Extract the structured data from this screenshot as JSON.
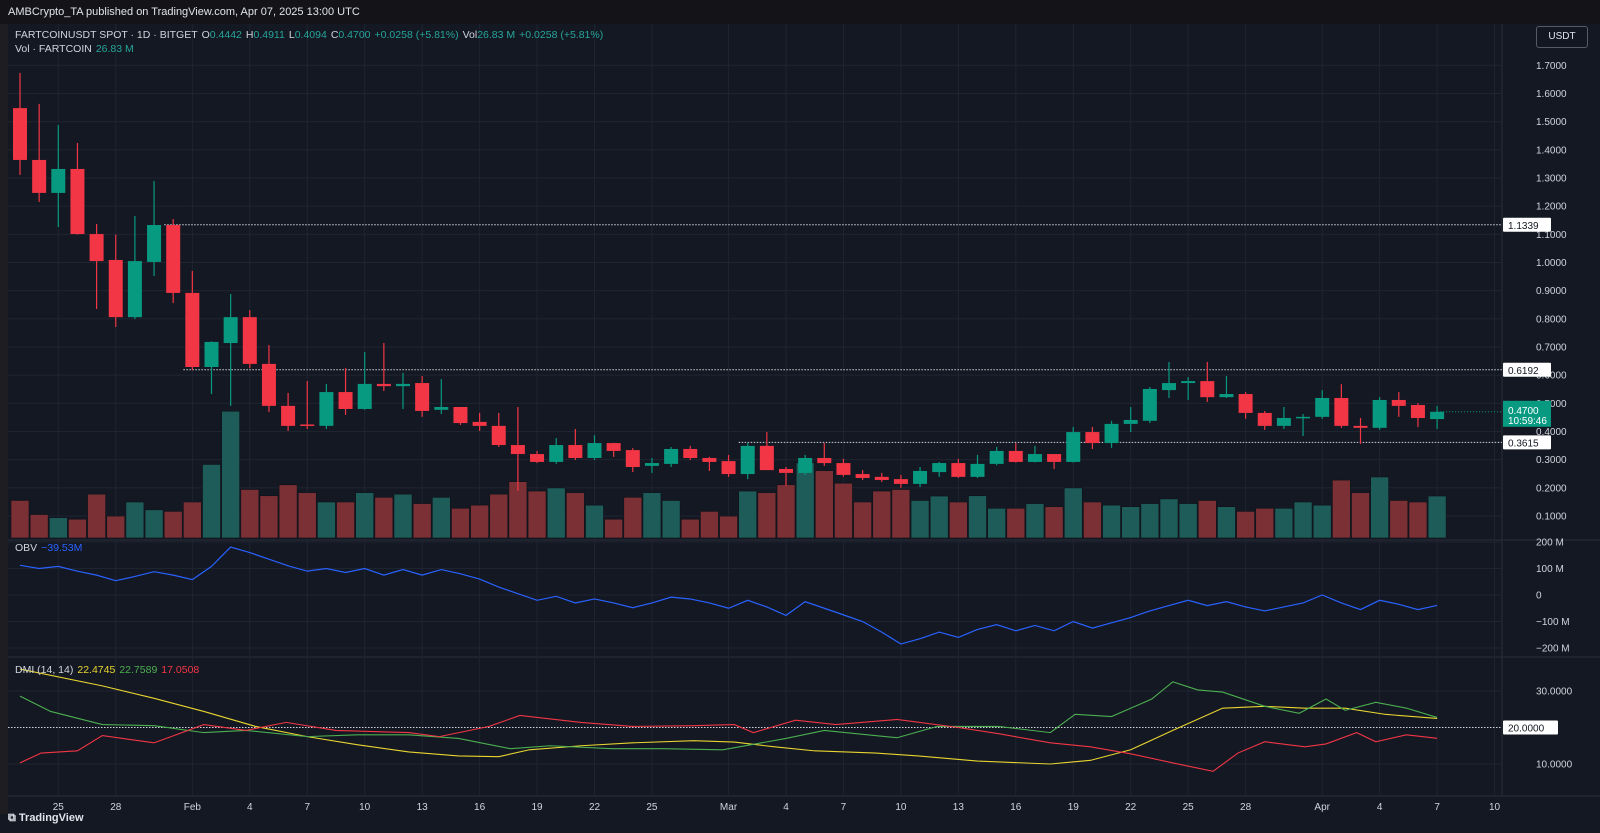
{
  "header": {
    "published": "AMBCrypto_TA published on TradingView.com, Apr 07, 2025 13:00 UTC"
  },
  "legend": {
    "symbol": "FARTCOINUSDT SPOT · 1D · BITGET",
    "o_label": "O",
    "o": "0.4442",
    "h_label": "H",
    "h": "0.4911",
    "l_label": "L",
    "l": "0.4094",
    "c_label": "C",
    "c": "0.4700",
    "change": "+0.0258 (+5.81%)",
    "vol_label": "Vol",
    "vol": "26.83 M",
    "vol_change": "+0.0258 (+5.81%)",
    "vol_line_label": "Vol · FARTCOIN",
    "vol_line_value": "26.83 M"
  },
  "currency_button": "USDT",
  "footer": {
    "brand": "TradingView"
  },
  "colors": {
    "up": "#089981",
    "down": "#f23645",
    "vol_up": "#1d5c59",
    "vol_down": "#7b3035",
    "obv": "#2962ff",
    "adx": "#e8d530",
    "plus_di": "#4caf50",
    "minus_di": "#f23645",
    "bg": "#141823",
    "grid": "#1f2431"
  },
  "chart_data": [
    {
      "type": "candlestick",
      "title": "FARTCOINUSDT SPOT · 1D · BITGET",
      "ylim": [
        0.05,
        1.75
      ],
      "yticks": [
        "1.7000",
        "1.6000",
        "1.5000",
        "1.4000",
        "1.3000",
        "1.2000",
        "1.1000",
        "1.0000",
        "0.9000",
        "0.8000",
        "0.7000",
        "0.6000",
        "0.5000",
        "0.4000",
        "0.3000",
        "0.2000",
        "0.1000"
      ],
      "xticks": [
        {
          "i": 2,
          "label": "25"
        },
        {
          "i": 5,
          "label": "28"
        },
        {
          "i": 9,
          "label": "Feb"
        },
        {
          "i": 12,
          "label": "4"
        },
        {
          "i": 15,
          "label": "7"
        },
        {
          "i": 18,
          "label": "10"
        },
        {
          "i": 21,
          "label": "13"
        },
        {
          "i": 24,
          "label": "16"
        },
        {
          "i": 27,
          "label": "19"
        },
        {
          "i": 30,
          "label": "22"
        },
        {
          "i": 33,
          "label": "25"
        },
        {
          "i": 37,
          "label": "Mar"
        },
        {
          "i": 40,
          "label": "4"
        },
        {
          "i": 43,
          "label": "7"
        },
        {
          "i": 46,
          "label": "10"
        },
        {
          "i": 49,
          "label": "13"
        },
        {
          "i": 52,
          "label": "16"
        },
        {
          "i": 55,
          "label": "19"
        },
        {
          "i": 58,
          "label": "22"
        },
        {
          "i": 61,
          "label": "25"
        },
        {
          "i": 64,
          "label": "28"
        },
        {
          "i": 68,
          "label": "Apr"
        },
        {
          "i": 71,
          "label": "4"
        },
        {
          "i": 74,
          "label": "7"
        },
        {
          "i": 77,
          "label": "10"
        }
      ],
      "levels": [
        {
          "price": 1.1339,
          "label": "1.1339",
          "from": 8
        },
        {
          "price": 0.6192,
          "label": "0.6192",
          "from": 9
        },
        {
          "price": 0.3615,
          "label": "0.3615",
          "from": 38
        }
      ],
      "last_price": {
        "price": 0.47,
        "label": "0.4700",
        "countdown": "10:59:46"
      },
      "ohlc": [
        [
          1.548,
          1.364,
          1.673,
          1.311
        ],
        [
          1.364,
          1.247,
          1.563,
          1.215
        ],
        [
          1.247,
          1.332,
          1.488,
          1.126
        ],
        [
          1.332,
          1.101,
          1.424,
          1.099
        ],
        [
          1.101,
          1.005,
          1.137,
          0.835
        ],
        [
          1.009,
          0.806,
          1.099,
          0.771
        ],
        [
          0.806,
          1.005,
          1.165,
          0.799
        ],
        [
          1.002,
          1.133,
          1.289,
          0.952
        ],
        [
          1.133,
          0.892,
          1.154,
          0.856
        ],
        [
          0.892,
          0.629,
          0.97,
          0.618
        ],
        [
          0.629,
          0.718,
          0.72,
          0.533
        ],
        [
          0.714,
          0.806,
          0.888,
          0.491
        ],
        [
          0.806,
          0.64,
          0.831,
          0.625
        ],
        [
          0.64,
          0.491,
          0.707,
          0.469
        ],
        [
          0.491,
          0.42,
          0.537,
          0.402
        ],
        [
          0.425,
          0.42,
          0.579,
          0.409
        ],
        [
          0.42,
          0.54,
          0.569,
          0.409
        ],
        [
          0.54,
          0.48,
          0.625,
          0.459
        ],
        [
          0.48,
          0.569,
          0.682,
          0.477
        ],
        [
          0.569,
          0.561,
          0.714,
          0.544
        ],
        [
          0.561,
          0.569,
          0.608,
          0.48
        ],
        [
          0.572,
          0.473,
          0.597,
          0.452
        ],
        [
          0.477,
          0.487,
          0.586,
          0.462
        ],
        [
          0.487,
          0.43,
          0.487,
          0.423
        ],
        [
          0.434,
          0.42,
          0.466,
          0.402
        ],
        [
          0.42,
          0.352,
          0.466,
          0.345
        ],
        [
          0.352,
          0.32,
          0.487,
          0.189
        ],
        [
          0.32,
          0.292,
          0.331,
          0.288
        ],
        [
          0.292,
          0.352,
          0.377,
          0.285
        ],
        [
          0.352,
          0.306,
          0.409,
          0.299
        ],
        [
          0.306,
          0.359,
          0.387,
          0.299
        ],
        [
          0.359,
          0.331,
          0.36,
          0.31
        ],
        [
          0.334,
          0.274,
          0.341,
          0.256
        ],
        [
          0.278,
          0.288,
          0.306,
          0.253
        ],
        [
          0.285,
          0.338,
          0.345,
          0.274
        ],
        [
          0.338,
          0.306,
          0.349,
          0.299
        ],
        [
          0.306,
          0.292,
          0.31,
          0.26
        ],
        [
          0.295,
          0.249,
          0.317,
          0.239
        ],
        [
          0.249,
          0.349,
          0.359,
          0.231
        ],
        [
          0.349,
          0.263,
          0.398,
          0.263
        ],
        [
          0.267,
          0.253,
          0.274,
          0.207
        ],
        [
          0.253,
          0.306,
          0.317,
          0.246
        ],
        [
          0.306,
          0.288,
          0.359,
          0.278
        ],
        [
          0.288,
          0.246,
          0.303,
          0.24
        ],
        [
          0.249,
          0.235,
          0.263,
          0.228
        ],
        [
          0.239,
          0.228,
          0.253,
          0.221
        ],
        [
          0.231,
          0.214,
          0.246,
          0.2
        ],
        [
          0.214,
          0.26,
          0.274,
          0.203
        ],
        [
          0.256,
          0.288,
          0.292,
          0.239
        ],
        [
          0.288,
          0.239,
          0.303,
          0.235
        ],
        [
          0.239,
          0.285,
          0.317,
          0.235
        ],
        [
          0.285,
          0.331,
          0.345,
          0.28
        ],
        [
          0.331,
          0.292,
          0.359,
          0.29
        ],
        [
          0.292,
          0.32,
          0.349,
          0.29
        ],
        [
          0.32,
          0.292,
          0.32,
          0.267
        ],
        [
          0.292,
          0.398,
          0.416,
          0.29
        ],
        [
          0.398,
          0.359,
          0.416,
          0.338
        ],
        [
          0.359,
          0.427,
          0.438,
          0.342
        ],
        [
          0.427,
          0.441,
          0.487,
          0.398
        ],
        [
          0.438,
          0.551,
          0.558,
          0.43
        ],
        [
          0.547,
          0.572,
          0.647,
          0.519
        ],
        [
          0.572,
          0.579,
          0.593,
          0.512
        ],
        [
          0.579,
          0.522,
          0.647,
          0.505
        ],
        [
          0.522,
          0.533,
          0.597,
          0.519
        ],
        [
          0.533,
          0.466,
          0.54,
          0.445
        ],
        [
          0.466,
          0.42,
          0.473,
          0.406
        ],
        [
          0.42,
          0.448,
          0.487,
          0.409
        ],
        [
          0.448,
          0.452,
          0.462,
          0.384
        ],
        [
          0.452,
          0.519,
          0.547,
          0.445
        ],
        [
          0.519,
          0.42,
          0.568,
          0.413
        ],
        [
          0.42,
          0.413,
          0.448,
          0.356
        ],
        [
          0.413,
          0.512,
          0.522,
          0.406
        ],
        [
          0.512,
          0.491,
          0.54,
          0.452
        ],
        [
          0.494,
          0.448,
          0.501,
          0.416
        ],
        [
          0.4442,
          0.47,
          0.4911,
          0.4094
        ]
      ],
      "volume_millions": [
        24,
        15,
        13,
        12,
        28,
        14,
        23,
        18,
        17,
        23,
        47,
        81,
        31,
        27,
        34,
        29,
        23,
        23,
        29,
        26,
        28,
        22,
        26,
        19,
        21,
        28,
        36,
        30,
        32,
        29,
        21,
        12,
        26,
        29,
        24,
        12,
        17,
        14,
        30,
        29,
        34,
        48,
        43,
        35,
        23,
        30,
        31,
        24,
        26.8,
        23,
        27,
        19,
        19,
        22,
        20,
        32,
        23,
        21,
        20,
        22,
        25,
        22,
        24,
        20,
        17,
        19,
        19,
        23,
        21,
        37,
        29,
        39,
        24,
        23,
        26.83
      ]
    },
    {
      "type": "line",
      "title": "OBV",
      "legend_value": "−39.53M",
      "ylim": [
        -230,
        240
      ],
      "yticks": [
        {
          "v": 200,
          "label": "200 M"
        },
        {
          "v": 100,
          "label": "100 M"
        },
        {
          "v": 0,
          "label": "0"
        },
        {
          "v": -100,
          "label": "−100 M"
        },
        {
          "v": -200,
          "label": "−200 M"
        }
      ],
      "values_millions": [
        112,
        100,
        108,
        90,
        75,
        54,
        70,
        88,
        75,
        58,
        108,
        181,
        160,
        135,
        110,
        90,
        100,
        85,
        100,
        75,
        96,
        75,
        96,
        80,
        60,
        30,
        5,
        -20,
        -5,
        -30,
        -15,
        -30,
        -48,
        -30,
        -8,
        -15,
        -30,
        -50,
        -20,
        -45,
        -77,
        -25,
        -50,
        -75,
        -100,
        -140,
        -185,
        -165,
        -140,
        -160,
        -130,
        -112,
        -135,
        -115,
        -135,
        -100,
        -125,
        -105,
        -85,
        -60,
        -40,
        -20,
        -40,
        -25,
        -45,
        -60,
        -45,
        -30,
        0,
        -30,
        -55,
        -20,
        -35,
        -55,
        -39.53
      ]
    },
    {
      "type": "line",
      "title": "DMI (14, 14)",
      "legend_values": {
        "adx": "22.4745",
        "plus_di": "22.7589",
        "minus_di": "17.0508"
      },
      "ylim": [
        3,
        40
      ],
      "yticks": [
        {
          "v": 30,
          "label": "30.0000"
        },
        {
          "v": 20,
          "label": "20.0000",
          "boxed": true
        },
        {
          "v": 10,
          "label": "10.0000"
        }
      ],
      "series": [
        {
          "name": "ADX",
          "points": [
            [
              0,
              36
            ],
            [
              4.3,
              31.4
            ],
            [
              7,
              28
            ],
            [
              9.6,
              24.4
            ],
            [
              12.3,
              20.3
            ],
            [
              15,
              17.5
            ],
            [
              17.6,
              15.3
            ],
            [
              20.3,
              13.3
            ],
            [
              22.9,
              12.2
            ],
            [
              25,
              12
            ],
            [
              26.6,
              13.9
            ],
            [
              29.3,
              15
            ],
            [
              32,
              15.8
            ],
            [
              35.2,
              16.4
            ],
            [
              37.3,
              16
            ],
            [
              39.4,
              14.7
            ],
            [
              41.5,
              13.6
            ],
            [
              44.7,
              13
            ],
            [
              46.9,
              12.2
            ],
            [
              50,
              10.8
            ],
            [
              53.8,
              10
            ],
            [
              55.9,
              11
            ],
            [
              58,
              13.9
            ],
            [
              60.2,
              19.2
            ],
            [
              62.8,
              25.3
            ],
            [
              65,
              25.8
            ],
            [
              67.1,
              25.3
            ],
            [
              69.2,
              25.3
            ],
            [
              71.3,
              23.6
            ],
            [
              74,
              22.47
            ]
          ]
        },
        {
          "name": "+DI",
          "points": [
            [
              0,
              28.6
            ],
            [
              1.6,
              24.4
            ],
            [
              4.3,
              20.8
            ],
            [
              7,
              20.5
            ],
            [
              9.6,
              18.6
            ],
            [
              11.8,
              19.2
            ],
            [
              15,
              17.5
            ],
            [
              17.6,
              18
            ],
            [
              20.3,
              18
            ],
            [
              22.9,
              17
            ],
            [
              25.6,
              14.2
            ],
            [
              27.7,
              15
            ],
            [
              30.9,
              14.2
            ],
            [
              33.6,
              14.2
            ],
            [
              36.7,
              13.9
            ],
            [
              40,
              17
            ],
            [
              42,
              19.2
            ],
            [
              45.8,
              17.2
            ],
            [
              47.9,
              20.3
            ],
            [
              51.1,
              20.3
            ],
            [
              53.8,
              18.6
            ],
            [
              55.1,
              23.6
            ],
            [
              57,
              23
            ],
            [
              59.1,
              27.8
            ],
            [
              60.2,
              32.5
            ],
            [
              61.5,
              30.3
            ],
            [
              62.8,
              29.7
            ],
            [
              65,
              25.8
            ],
            [
              66.8,
              23.9
            ],
            [
              68.2,
              27.8
            ],
            [
              69.2,
              24.7
            ],
            [
              70.8,
              26.9
            ],
            [
              72.4,
              25.3
            ],
            [
              74,
              22.76
            ]
          ]
        },
        {
          "name": "-DI",
          "points": [
            [
              0,
              10.3
            ],
            [
              1.1,
              13
            ],
            [
              3,
              13.6
            ],
            [
              4.3,
              17.8
            ],
            [
              7,
              15.8
            ],
            [
              9.6,
              20.8
            ],
            [
              11.8,
              19.2
            ],
            [
              13.9,
              21.4
            ],
            [
              16.5,
              19.2
            ],
            [
              20.3,
              18.6
            ],
            [
              21.9,
              17.5
            ],
            [
              24.5,
              20.3
            ],
            [
              26.1,
              23.3
            ],
            [
              29.3,
              21.4
            ],
            [
              32,
              20.3
            ],
            [
              35.2,
              20.5
            ],
            [
              37.3,
              20.8
            ],
            [
              38.3,
              18.6
            ],
            [
              40.5,
              22
            ],
            [
              42.6,
              20.8
            ],
            [
              45.8,
              22.2
            ],
            [
              49,
              20
            ],
            [
              51.1,
              18.3
            ],
            [
              53.8,
              15.8
            ],
            [
              55.9,
              14.7
            ],
            [
              58,
              12.8
            ],
            [
              60.2,
              10.3
            ],
            [
              62.3,
              8
            ],
            [
              63.6,
              13
            ],
            [
              65,
              16.1
            ],
            [
              67.1,
              14.7
            ],
            [
              68.2,
              15.5
            ],
            [
              69.8,
              18.6
            ],
            [
              70.8,
              16.1
            ],
            [
              72.4,
              18
            ],
            [
              74,
              17.05
            ]
          ]
        }
      ]
    }
  ]
}
